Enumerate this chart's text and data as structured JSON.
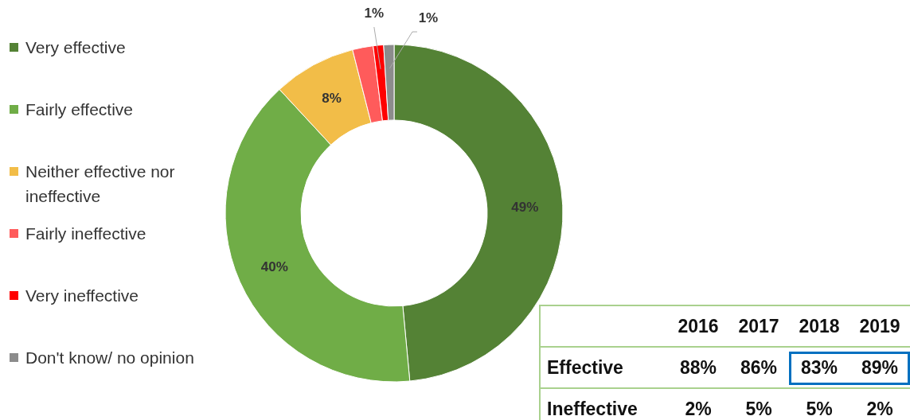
{
  "chart_data": [
    {
      "type": "donut",
      "categories": [
        "Very effective",
        "Fairly effective",
        "Neither effective nor ineffective",
        "Fairly ineffective",
        "Very ineffective",
        "Don't know/ no opinion"
      ],
      "values": [
        49,
        40,
        8,
        2,
        1,
        1
      ],
      "colors": [
        "#548235",
        "#70ad47",
        "#f2bd48",
        "#ff5b5b",
        "#ff0000",
        "#8c8c8c"
      ],
      "value_labels": [
        "49%",
        "40%",
        "8%",
        null,
        "1%",
        "1%"
      ],
      "legend": "left"
    },
    {
      "type": "heatmap",
      "categories": [
        "2016",
        "2017",
        "2018",
        "2019"
      ],
      "y_categories": [
        "Effective",
        "Ineffective"
      ],
      "cells": [
        [
          88,
          86,
          83,
          89
        ],
        [
          2,
          5,
          5,
          2
        ]
      ],
      "cell_labels": [
        [
          "88%",
          "86%",
          "83%",
          "89%"
        ],
        [
          "2%",
          "5%",
          "5%",
          "2%"
        ]
      ]
    }
  ]
}
